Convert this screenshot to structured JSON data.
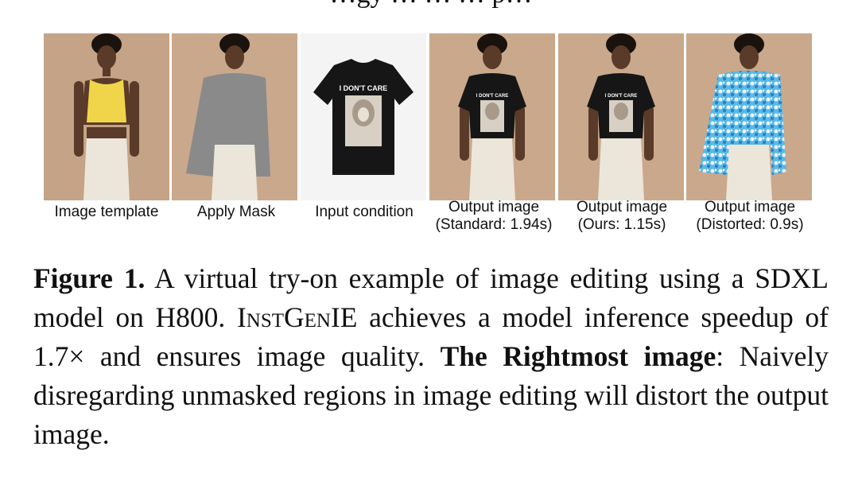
{
  "heading_fragment": "…gy … … … p…",
  "panels": [
    {
      "caption_line1": "Image template",
      "caption_line2": "",
      "top_style": "yellow-top"
    },
    {
      "caption_line1": "Apply Mask",
      "caption_line2": "",
      "top_style": "masked"
    },
    {
      "caption_line1": "Input condition",
      "caption_line2": "",
      "top_style": "tshirt"
    },
    {
      "caption_line1": "Output image",
      "caption_line2": "(Standard: 1.94s)",
      "top_style": "black-tee"
    },
    {
      "caption_line1": "Output image",
      "caption_line2": "(Ours: 1.15s)",
      "top_style": "black-tee"
    },
    {
      "caption_line1": "Output image",
      "caption_line2": "(Distorted: 0.9s)",
      "top_style": "distorted"
    }
  ],
  "tshirt_print": "I DON'T CARE",
  "caption": {
    "label": "Figure 1.",
    "t1": " A virtual try-on example of image editing using a SDXL model on H800. ",
    "sys_name": "InstGenIE",
    "t2": " achieves a model inference speedup of 1.7× and ensures image quality. ",
    "bold2": "The Rightmost image",
    "t3": ": Naively disregarding unmasked regions in image editing will distort the output image."
  },
  "colors": {
    "photo_bg": "#c9a88c",
    "skin": "#5a3a28",
    "yellow_top": "#f0d54a",
    "mask_gray": "#8a8a8a",
    "skirt": "#ece6da",
    "tee": "#161616",
    "distorted_a": "#5ab8e6",
    "distorted_b": "#e8f4fb"
  }
}
